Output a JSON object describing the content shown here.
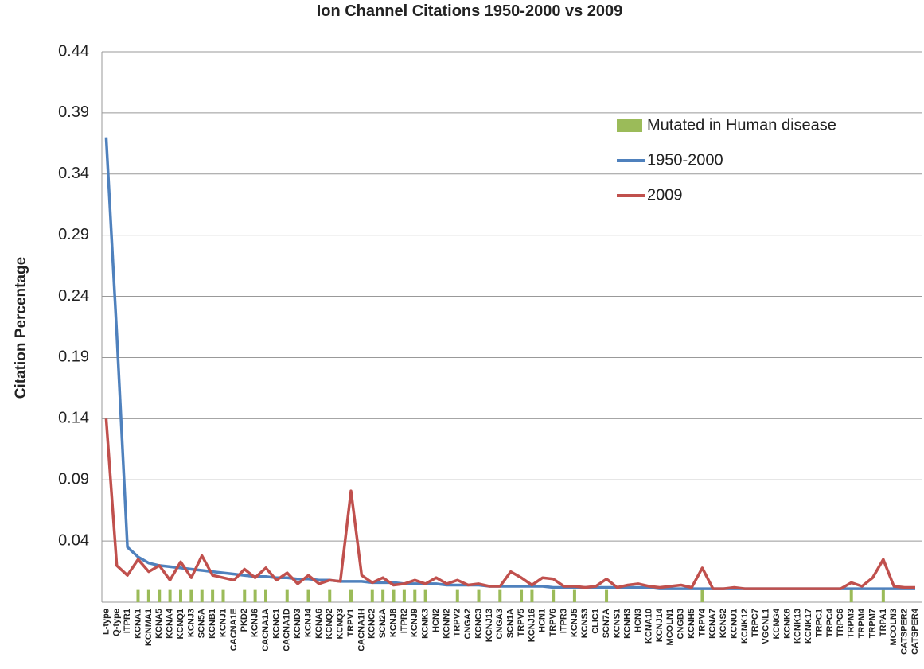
{
  "chart_data": {
    "type": "line",
    "title": "Ion Channel Citations 1950-2000 vs 2009",
    "y_label": "Citation Percentage",
    "categories": [
      "L-type",
      "Q-type",
      "ITPR1",
      "KCNA1",
      "KCNMA1",
      "KCNA5",
      "KCNA4",
      "KCNQ1",
      "KCNJ3",
      "SCN5A",
      "KCNB1",
      "KCNJ1",
      "CACNA1E",
      "PKD2",
      "KCNJ6",
      "CACNA1A",
      "KCNC1",
      "CACNA1D",
      "KCND3",
      "KCNJ4",
      "KCNA6",
      "KCNQ2",
      "KCNQ3",
      "TRPV1",
      "CACNA1H",
      "KCNC2",
      "SCN2A",
      "KCNJ8",
      "ITPR2",
      "KCNJ9",
      "KCNK3",
      "HCN2",
      "KCNN2",
      "TRPV2",
      "CNGA2",
      "KCNC3",
      "KCNJ13",
      "CNGA3",
      "SCN1A",
      "TRPV5",
      "KCNJ16",
      "HCN1",
      "TRPV6",
      "ITPR3",
      "KCNJ5",
      "KCNS3",
      "CLIC1",
      "SCN7A",
      "KCNS1",
      "KCNH3",
      "HCN3",
      "KCNA10",
      "KCNJ14",
      "MCOLN1",
      "CNGB3",
      "KCNH5",
      "TRPV4",
      "KCNA7",
      "KCNS2",
      "KCNU1",
      "KCNK12",
      "TRPC7",
      "VGCNL1",
      "KCNG4",
      "KCNK6",
      "KCNK13",
      "KCNK17",
      "TRPC1",
      "TRPC4",
      "TRPC6",
      "TRPM3",
      "TRPM4",
      "TRPM7",
      "TRPA1",
      "MCOLN3",
      "CATSPER2",
      "CATSPER4"
    ],
    "series": [
      {
        "name": "Mutated in Human disease",
        "type": "bar",
        "color": "#9bbb59",
        "values": [
          null,
          null,
          null,
          0,
          0,
          0,
          0,
          0,
          0,
          0,
          0,
          0,
          null,
          0,
          0,
          0,
          null,
          0,
          null,
          0,
          null,
          0,
          null,
          0,
          null,
          0,
          0,
          0,
          0,
          0,
          0,
          null,
          null,
          0,
          null,
          0,
          null,
          0,
          null,
          0,
          0,
          null,
          0,
          null,
          0,
          null,
          null,
          0,
          null,
          null,
          null,
          null,
          null,
          null,
          null,
          null,
          0,
          null,
          null,
          null,
          null,
          null,
          null,
          null,
          null,
          null,
          null,
          null,
          null,
          null,
          0,
          null,
          null,
          0,
          null,
          null,
          null
        ]
      },
      {
        "name": "1950-2000",
        "type": "line",
        "color": "#4f81bd",
        "values": [
          0.37,
          0.21,
          0.035,
          0.027,
          0.022,
          0.02,
          0.019,
          0.018,
          0.017,
          0.016,
          0.015,
          0.014,
          0.013,
          0.012,
          0.011,
          0.011,
          0.01,
          0.01,
          0.009,
          0.009,
          0.008,
          0.008,
          0.007,
          0.007,
          0.007,
          0.006,
          0.006,
          0.006,
          0.005,
          0.005,
          0.005,
          0.005,
          0.004,
          0.004,
          0.004,
          0.004,
          0.003,
          0.003,
          0.003,
          0.003,
          0.003,
          0.003,
          0.002,
          0.002,
          0.002,
          0.002,
          0.002,
          0.002,
          0.002,
          0.002,
          0.002,
          0.002,
          0.001,
          0.001,
          0.001,
          0.001,
          0.001,
          0.001,
          0.001,
          0.001,
          0.001,
          0.001,
          0.001,
          0.001,
          0.001,
          0.001,
          0.001,
          0.001,
          0.001,
          0.001,
          0.001,
          0.001,
          0.001,
          0.001,
          0.001,
          0.001,
          0.001
        ]
      },
      {
        "name": "2009",
        "type": "line",
        "color": "#c0504d",
        "values": [
          0.14,
          0.02,
          0.012,
          0.025,
          0.015,
          0.02,
          0.008,
          0.023,
          0.01,
          0.028,
          0.012,
          0.01,
          0.008,
          0.017,
          0.01,
          0.018,
          0.008,
          0.014,
          0.005,
          0.012,
          0.005,
          0.008,
          0.007,
          0.081,
          0.012,
          0.006,
          0.01,
          0.004,
          0.005,
          0.008,
          0.005,
          0.01,
          0.005,
          0.008,
          0.004,
          0.005,
          0.003,
          0.003,
          0.015,
          0.01,
          0.004,
          0.01,
          0.009,
          0.003,
          0.003,
          0.002,
          0.003,
          0.009,
          0.002,
          0.004,
          0.005,
          0.003,
          0.002,
          0.003,
          0.004,
          0.002,
          0.018,
          0.001,
          0.001,
          0.002,
          0.001,
          0.001,
          0.001,
          0.001,
          0.001,
          0.001,
          0.001,
          0.001,
          0.001,
          0.001,
          0.006,
          0.003,
          0.01,
          0.025,
          0.003,
          0.002,
          0.002
        ]
      }
    ],
    "ylim": [
      -0.01,
      0.44
    ],
    "yticks": [
      0.04,
      0.09,
      0.14,
      0.19,
      0.24,
      0.29,
      0.34,
      0.39,
      0.44
    ],
    "grid": true,
    "legend": "upper right"
  }
}
